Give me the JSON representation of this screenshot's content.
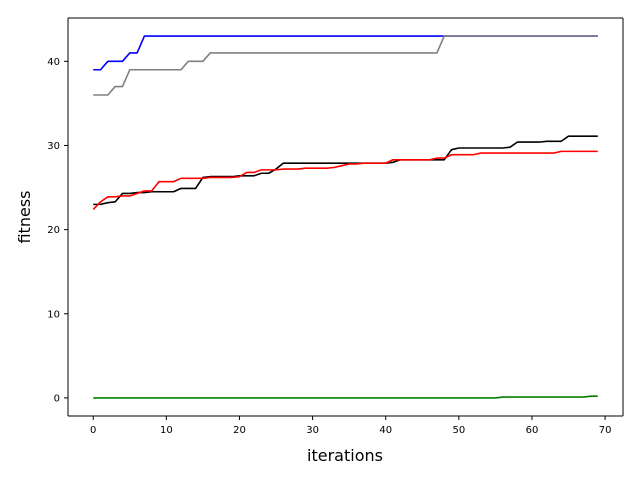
{
  "chart_data": {
    "type": "line",
    "title": "",
    "xlabel": "iterations",
    "ylabel": "fitness",
    "xlim": [
      -3.45,
      72.45
    ],
    "ylim": [
      -2.15,
      45.15
    ],
    "grid": false,
    "xticks": [
      0,
      10,
      20,
      30,
      40,
      50,
      60,
      70
    ],
    "yticks": [
      0,
      10,
      20,
      30,
      40
    ],
    "x": [
      0,
      1,
      2,
      3,
      4,
      5,
      6,
      7,
      8,
      9,
      10,
      11,
      12,
      13,
      14,
      15,
      16,
      17,
      18,
      19,
      20,
      21,
      22,
      23,
      24,
      25,
      26,
      27,
      28,
      29,
      30,
      31,
      32,
      33,
      34,
      35,
      36,
      37,
      38,
      39,
      40,
      41,
      42,
      43,
      44,
      45,
      46,
      47,
      48,
      49,
      50,
      51,
      52,
      53,
      54,
      55,
      56,
      57,
      58,
      59,
      60,
      61,
      62,
      63,
      64,
      65,
      66,
      67,
      68,
      69
    ],
    "series": [
      {
        "color": "#0000ff",
        "values": [
          39,
          39,
          40,
          40,
          40,
          41,
          41,
          43,
          43,
          43,
          43,
          43,
          43,
          43,
          43,
          43,
          43,
          43,
          43,
          43,
          43,
          43,
          43,
          43,
          43,
          43,
          43,
          43,
          43,
          43,
          43,
          43,
          43,
          43,
          43,
          43,
          43,
          43,
          43,
          43,
          43,
          43,
          43,
          43,
          43,
          43,
          43,
          43,
          43,
          43,
          43,
          43,
          43,
          43,
          43,
          43,
          43,
          43,
          43,
          43,
          43,
          43,
          43,
          43,
          43,
          43,
          43,
          43,
          43,
          43
        ]
      },
      {
        "color": "#808080",
        "values": [
          36,
          36,
          36,
          37,
          37,
          39,
          39,
          39,
          39,
          39,
          39,
          39,
          39,
          40,
          40,
          40,
          41,
          41,
          41,
          41,
          41,
          41,
          41,
          41,
          41,
          41,
          41,
          41,
          41,
          41,
          41,
          41,
          41,
          41,
          41,
          41,
          41,
          41,
          41,
          41,
          41,
          41,
          41,
          41,
          41,
          41,
          41,
          41,
          43,
          43,
          43,
          43,
          43,
          43,
          43,
          43,
          43,
          43,
          43,
          43,
          43,
          43,
          43,
          43,
          43,
          43,
          43,
          43,
          43,
          43
        ]
      },
      {
        "color": "#000000",
        "values": [
          23.0,
          23.0,
          23.2,
          23.3,
          24.3,
          24.3,
          24.4,
          24.4,
          24.5,
          24.5,
          24.5,
          24.5,
          24.9,
          24.9,
          24.9,
          26.2,
          26.3,
          26.3,
          26.3,
          26.3,
          26.4,
          26.4,
          26.4,
          26.7,
          26.7,
          27.2,
          27.9,
          27.9,
          27.9,
          27.9,
          27.9,
          27.9,
          27.9,
          27.9,
          27.9,
          27.9,
          27.9,
          27.9,
          27.9,
          27.9,
          27.9,
          28.0,
          28.3,
          28.3,
          28.3,
          28.3,
          28.3,
          28.3,
          28.3,
          29.5,
          29.7,
          29.7,
          29.7,
          29.7,
          29.7,
          29.7,
          29.7,
          29.8,
          30.4,
          30.4,
          30.4,
          30.4,
          30.5,
          30.5,
          30.5,
          31.1,
          31.1,
          31.1,
          31.1,
          31.1
        ]
      },
      {
        "color": "#ff0000",
        "values": [
          22.4,
          23.3,
          23.9,
          23.9,
          24.0,
          24.0,
          24.3,
          24.6,
          24.6,
          25.7,
          25.7,
          25.7,
          26.1,
          26.1,
          26.1,
          26.1,
          26.2,
          26.2,
          26.2,
          26.2,
          26.3,
          26.8,
          26.8,
          27.1,
          27.1,
          27.1,
          27.2,
          27.2,
          27.2,
          27.3,
          27.3,
          27.3,
          27.3,
          27.4,
          27.6,
          27.8,
          27.8,
          27.9,
          27.9,
          27.9,
          27.9,
          28.3,
          28.3,
          28.3,
          28.3,
          28.3,
          28.3,
          28.5,
          28.5,
          28.9,
          28.9,
          28.9,
          28.9,
          29.1,
          29.1,
          29.1,
          29.1,
          29.1,
          29.1,
          29.1,
          29.1,
          29.1,
          29.1,
          29.1,
          29.3,
          29.3,
          29.3,
          29.3,
          29.3,
          29.3
        ]
      },
      {
        "color": "#008000",
        "values": [
          0.0,
          0.0,
          0.0,
          0.0,
          0.0,
          0.0,
          0.0,
          0.0,
          0.0,
          0.0,
          0.0,
          0.0,
          0.0,
          0.0,
          0.0,
          0.0,
          0.0,
          0.0,
          0.0,
          0.0,
          0.0,
          0.0,
          0.0,
          0.0,
          0.0,
          0.0,
          0.0,
          0.0,
          0.0,
          0.0,
          0.0,
          0.0,
          0.0,
          0.0,
          0.0,
          0.0,
          0.0,
          0.0,
          0.0,
          0.0,
          0.0,
          0.0,
          0.0,
          0.0,
          0.0,
          0.0,
          0.0,
          0.0,
          0.0,
          0.0,
          0.0,
          0.0,
          0.0,
          0.0,
          0.0,
          0.0,
          0.1,
          0.1,
          0.1,
          0.1,
          0.1,
          0.1,
          0.1,
          0.1,
          0.1,
          0.1,
          0.1,
          0.1,
          0.2,
          0.2
        ]
      }
    ]
  }
}
